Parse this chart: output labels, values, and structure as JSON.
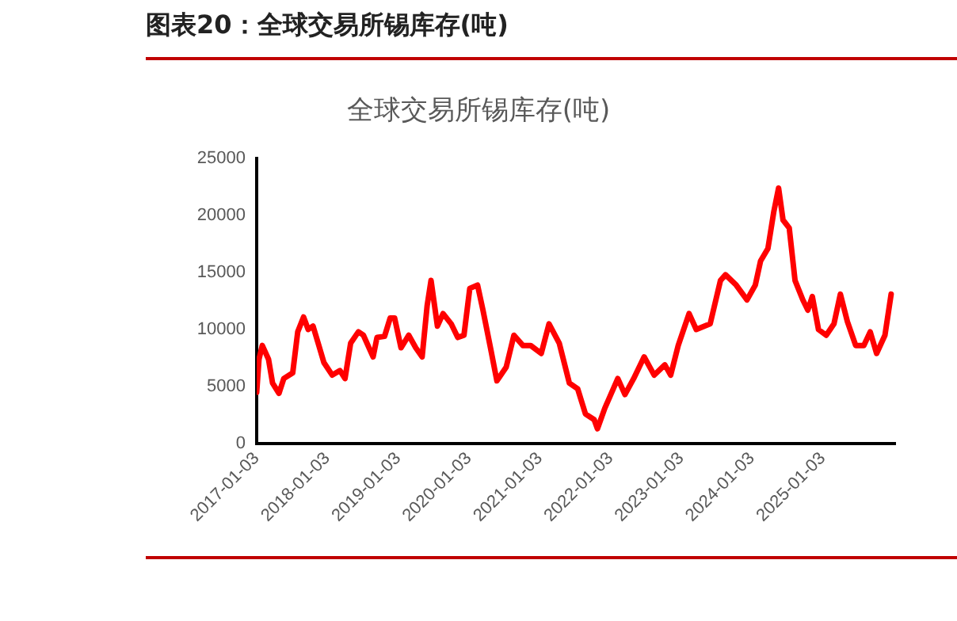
{
  "chart_data": {
    "type": "line",
    "title": "图表20：全球交易所锡库存(吨)",
    "subtitle": "全球交易所锡库存(吨)",
    "x": [
      "2017-01-03",
      "2017-01-15",
      "2017-02-01",
      "2017-03-05",
      "2017-03-26",
      "2017-04-28",
      "2017-05-23",
      "2017-07-08",
      "2017-08-03",
      "2017-09-02",
      "2017-09-26",
      "2017-10-21",
      "2017-11-20",
      "2017-12-16",
      "2018-01-28",
      "2018-03-09",
      "2018-04-04",
      "2018-05-03",
      "2018-06-12",
      "2018-07-08",
      "2018-08-27",
      "2018-09-16",
      "2018-10-25",
      "2018-11-23",
      "2018-12-16",
      "2019-01-18",
      "2019-02-27",
      "2019-04-04",
      "2019-05-07",
      "2019-06-02",
      "2019-06-22",
      "2019-07-25",
      "2019-08-23",
      "2019-10-04",
      "2019-11-07",
      "2019-12-09",
      "2020-01-08",
      "2020-02-17",
      "2020-03-16",
      "2020-04-25",
      "2020-05-27",
      "2020-07-14",
      "2020-08-23",
      "2020-10-08",
      "2020-11-17",
      "2021-01-11",
      "2021-02-20",
      "2021-04-14",
      "2021-06-05",
      "2021-07-18",
      "2021-08-27",
      "2021-10-11",
      "2021-10-28",
      "2021-12-05",
      "2022-02-10",
      "2022-03-19",
      "2022-05-03",
      "2022-06-26",
      "2022-08-17",
      "2022-10-11",
      "2022-11-10",
      "2022-12-19",
      "2023-02-13",
      "2023-03-22",
      "2023-06-02",
      "2023-07-25",
      "2023-08-20",
      "2023-10-14",
      "2023-12-09",
      "2024-01-21",
      "2024-02-17",
      "2024-03-26",
      "2024-04-25",
      "2024-05-20",
      "2024-06-12",
      "2024-07-14",
      "2024-08-13",
      "2024-09-22",
      "2024-10-18",
      "2024-11-10",
      "2024-12-12",
      "2025-01-21",
      "2025-03-02",
      "2025-04-04",
      "2025-05-10",
      "2025-06-22",
      "2025-08-03",
      "2025-09-05",
      "2025-10-08",
      "2025-11-20",
      "2025-12-22"
    ],
    "series": [
      {
        "color": "#ff0000",
        "values": [
          4500,
          7400,
          8600,
          7400,
          5300,
          4400,
          5700,
          6200,
          9800,
          11100,
          10000,
          10300,
          8600,
          7100,
          6000,
          6400,
          5700,
          8800,
          9800,
          9500,
          7600,
          9300,
          9400,
          11000,
          11000,
          8400,
          9500,
          8400,
          7600,
          12100,
          14300,
          10300,
          11400,
          10500,
          9300,
          9500,
          13600,
          13900,
          11700,
          8300,
          5500,
          6700,
          9500,
          8600,
          8600,
          7900,
          10500,
          8800,
          5300,
          4800,
          2600,
          2100,
          1300,
          3100,
          5700,
          4300,
          5700,
          7600,
          6000,
          6900,
          6000,
          8600,
          11400,
          10000,
          10500,
          14300,
          14800,
          13900,
          12600,
          13900,
          16000,
          17100,
          20300,
          22400,
          19600,
          18900,
          14300,
          12600,
          11700,
          12900,
          10000,
          9500,
          10500,
          13100,
          10700,
          8600,
          8600,
          9800,
          7900,
          9500,
          13100
        ]
      }
    ],
    "xlim": [
      "2017-01-03",
      "2026-01-12"
    ],
    "xticks": [
      "2017-01-03",
      "2018-01-03",
      "2019-01-03",
      "2020-01-03",
      "2021-01-03",
      "2022-01-03",
      "2023-01-03",
      "2024-01-03",
      "2025-01-03"
    ],
    "ylim": [
      0,
      25000
    ],
    "yticks": [
      0,
      5000,
      10000,
      15000,
      20000,
      25000
    ],
    "grid": false,
    "legend": false,
    "marker": "none",
    "line_style": "solid"
  }
}
